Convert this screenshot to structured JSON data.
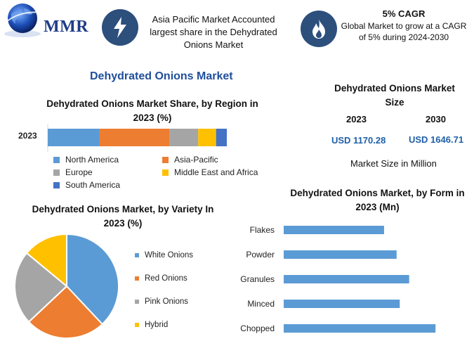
{
  "header": {
    "logo_text": "MMR",
    "box1_text": "Asia Pacific Market Accounted largest share in the Dehydrated Onions Market",
    "box2_title": "5% CAGR",
    "box2_text": "Global Market to grow at a CAGR of 5% during 2024-2030",
    "box1_icon": "lightning-icon",
    "box2_icon": "flame-icon"
  },
  "main_title": "Dehydrated Onions Market",
  "market_size": {
    "title": "Dehydrated Onions Market Size",
    "years": [
      "2023",
      "2030"
    ],
    "values": [
      "USD 1170.28",
      "USD 1646.71"
    ],
    "footer": "Market Size in Million"
  },
  "colors": {
    "blue": "#5b9bd5",
    "orange": "#ed7d31",
    "gray": "#a5a5a5",
    "yellow": "#ffc000",
    "darkblue": "#4472c4",
    "header_icon_bg": "#2c4f7c",
    "title_blue": "#1f4e9c",
    "value_blue": "#1f5fa8"
  },
  "chart_data": [
    {
      "type": "bar",
      "orientation": "horizontal-stacked",
      "title": "Dehydrated Onions Market Share, by Region in 2023 (%)",
      "categories": [
        "2023"
      ],
      "series": [
        {
          "name": "North America",
          "values": [
            29
          ]
        },
        {
          "name": "Asia-Pacific",
          "values": [
            39
          ]
        },
        {
          "name": "Europe",
          "values": [
            16
          ]
        },
        {
          "name": "Middle East and Africa",
          "values": [
            10
          ]
        },
        {
          "name": "South America",
          "values": [
            6
          ]
        }
      ],
      "legend": "bottom"
    },
    {
      "type": "pie",
      "title": "Dehydrated Onions Market, by Variety In 2023 (%)",
      "labels": [
        "White Onions",
        "Red Onions",
        "Pink Onions",
        "Hybrid"
      ],
      "values": [
        38,
        25,
        23,
        14
      ],
      "legend": "right"
    },
    {
      "type": "bar",
      "orientation": "horizontal",
      "title": "Dehydrated Onions Market, by Form in 2023 (Mn)",
      "categories": [
        "Flakes",
        "Powder",
        "Granules",
        "Minced",
        "Chopped"
      ],
      "values": [
        160,
        180,
        200,
        185,
        242
      ],
      "xlim": [
        0,
        300
      ],
      "grid": false
    }
  ]
}
